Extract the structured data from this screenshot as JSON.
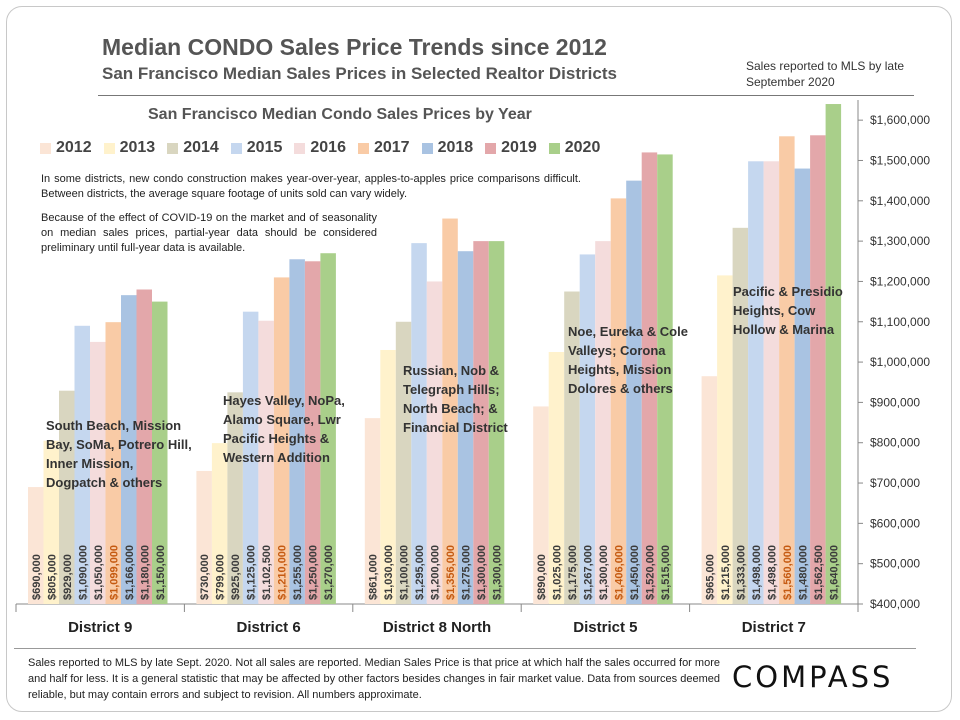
{
  "header": {
    "title": "Median CONDO Sales Price Trends since 2012",
    "subtitle": "San Francisco Median Sales Prices in Selected Realtor Districts",
    "mls_note": "Sales reported to MLS by late September 2020"
  },
  "notes": {
    "note1": "In some districts, new condo construction makes year-over-year, apples-to-apples price comparisons difficult. Between districts, the average square footage of units sold can vary widely.",
    "note2": "Because of the effect of COVID-19 on the market and of seasonality on median sales prices, partial-year data should be considered preliminary until full-year data is available."
  },
  "footer": {
    "text": "Sales reported to MLS by late Sept. 2020. Not all sales are reported. Median Sales Price is that price at which half the sales occurred for more and half for less. It is a general statistic that may be affected by other factors besides changes in fair market value. Data from sources deemed reliable, but may contain errors and subject to revision.  All numbers approximate.",
    "logo": "COMPASS"
  },
  "chart_data": {
    "type": "bar",
    "title": "San Francisco Median Condo Sales Prices by Year",
    "ylim": [
      400000,
      1650000
    ],
    "yticks": [
      400000,
      500000,
      600000,
      700000,
      800000,
      900000,
      1000000,
      1100000,
      1200000,
      1300000,
      1400000,
      1500000,
      1600000
    ],
    "ytick_labels": [
      "$400,000",
      "$500,000",
      "$600,000",
      "$700,000",
      "$800,000",
      "$900,000",
      "$1,000,000",
      "$1,100,000",
      "$1,200,000",
      "$1,300,000",
      "$1,400,000",
      "$1,500,000",
      "$1,600,000"
    ],
    "legend_position": "top",
    "grid": false,
    "categories": [
      "District 9",
      "District 6",
      "District 8 North",
      "District 5",
      "District 7"
    ],
    "district_descriptions": [
      "South Beach, Mission Bay, SoMa, Potrero Hill, Inner Mission, Dogpatch & others",
      "Hayes Valley, NoPa, Alamo Square, Lwr Pacific Heights & Western Addition",
      "Russian, Nob & Telegraph Hills; North Beach; & Financial District",
      "Noe, Eureka & Cole Valleys; Corona Heights, Mission Dolores & others",
      "Pacific & Presidio Heights, Cow Hollow & Marina"
    ],
    "series": [
      {
        "name": "2012",
        "color": "#fbe5d6",
        "values": [
          690000,
          730000,
          861000,
          890000,
          965000
        ],
        "labels": [
          "$690,000",
          "$730,000",
          "$861,000",
          "$890,000",
          "$965,000"
        ]
      },
      {
        "name": "2013",
        "color": "#fff2cc",
        "values": [
          805000,
          799000,
          1030000,
          1025000,
          1215000
        ],
        "labels": [
          "$805,000",
          "$799,000",
          "$1,030,000",
          "$1,025,000",
          "$1,215,000"
        ]
      },
      {
        "name": "2014",
        "color": "#d9d6c0",
        "values": [
          929000,
          925000,
          1100000,
          1175000,
          1333000
        ],
        "labels": [
          "$929,000",
          "$925,000",
          "$1,100,000",
          "$1,175,000",
          "$1,333,000"
        ]
      },
      {
        "name": "2015",
        "color": "#c5d7ef",
        "values": [
          1090000,
          1125000,
          1295000,
          1267000,
          1498000
        ],
        "labels": [
          "$1,090,000",
          "$1,125,000",
          "$1,295,000",
          "$1,267,000",
          "$1,498,000"
        ]
      },
      {
        "name": "2016",
        "color": "#f4dcdc",
        "values": [
          1050000,
          1102500,
          1200000,
          1300000,
          1498000
        ],
        "labels": [
          "$1,050,000",
          "$1,102,500",
          "$1,200,000",
          "$1,300,000",
          "$1,498,000"
        ]
      },
      {
        "name": "2017",
        "color": "#f9cba6",
        "values": [
          1099000,
          1210000,
          1356000,
          1406000,
          1560000
        ],
        "labels": [
          "$1,099,000",
          "$1,210,000",
          "$1,356,000",
          "$1,406,000",
          "$1,560,000"
        ]
      },
      {
        "name": "2018",
        "color": "#a9c3e2",
        "values": [
          1166000,
          1255000,
          1275000,
          1450000,
          1480000
        ],
        "labels": [
          "$1,166,000",
          "$1,255,000",
          "$1,275,000",
          "$1,450,000",
          "$1,480,000"
        ]
      },
      {
        "name": "2019",
        "color": "#e3a7aa",
        "values": [
          1180000,
          1250000,
          1300000,
          1520000,
          1562500
        ],
        "labels": [
          "$1,180,000",
          "$1,250,000",
          "$1,300,000",
          "$1,520,000",
          "$1,562,500"
        ]
      },
      {
        "name": "2020",
        "color": "#a9cf8a",
        "values": [
          1150000,
          1270000,
          1300000,
          1515000,
          1640000
        ],
        "labels": [
          "$1,150,000",
          "$1,270,000",
          "$1,300,000",
          "$1,515,000",
          "$1,640,000"
        ]
      }
    ]
  }
}
